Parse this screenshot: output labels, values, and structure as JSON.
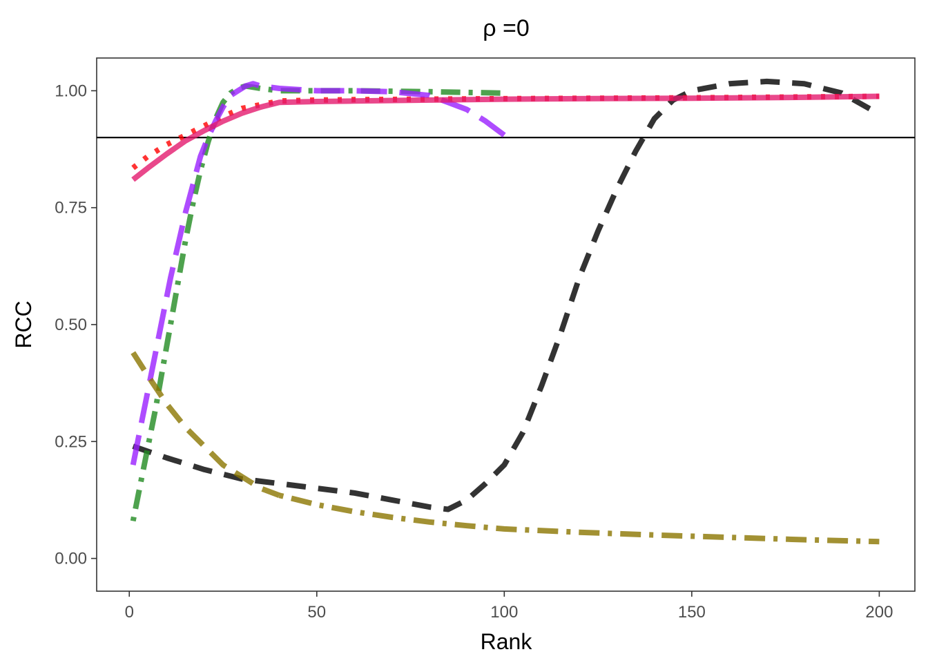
{
  "chart_data": {
    "type": "line",
    "title": "ρ =0",
    "xlabel": "Rank",
    "ylabel": "RCC",
    "xlim": [
      -8.7,
      209.5
    ],
    "ylim": [
      -0.07,
      1.07
    ],
    "xticks": [
      0,
      50,
      100,
      150,
      200
    ],
    "xtick_labels": [
      "0",
      "50",
      "100",
      "150",
      "200"
    ],
    "yticks": [
      0,
      0.25,
      0.5,
      0.75,
      1.0
    ],
    "ytick_labels": [
      "0.00",
      "0.25",
      "0.50",
      "0.75",
      "1.00"
    ],
    "grid": false,
    "legend": "none",
    "reference_line": {
      "y": 0.9,
      "color": "#000000"
    },
    "series": [
      {
        "color": "#000000",
        "opacity": 0.8,
        "dash": "dashed",
        "x": [
          1,
          10,
          20,
          30,
          40,
          50,
          60,
          70,
          80,
          85,
          90,
          95,
          100,
          105,
          110,
          115,
          120,
          125,
          130,
          135,
          140,
          145,
          150,
          160,
          170,
          180,
          190,
          200
        ],
        "y": [
          0.24,
          0.215,
          0.19,
          0.17,
          0.16,
          0.15,
          0.14,
          0.125,
          0.11,
          0.105,
          0.125,
          0.16,
          0.2,
          0.27,
          0.37,
          0.48,
          0.6,
          0.7,
          0.79,
          0.87,
          0.94,
          0.98,
          1.0,
          1.015,
          1.02,
          1.015,
          0.995,
          0.95
        ]
      },
      {
        "color": "#ff0000",
        "opacity": 0.8,
        "dash": "dotted",
        "x": [
          1,
          5,
          10,
          15,
          20,
          25,
          30,
          40,
          50,
          60,
          80,
          100,
          150,
          200
        ],
        "y": [
          0.835,
          0.86,
          0.885,
          0.905,
          0.925,
          0.945,
          0.962,
          0.978,
          0.98,
          0.981,
          0.982,
          0.983,
          0.985,
          0.988
        ]
      },
      {
        "color": "#228b22",
        "opacity": 0.8,
        "dash": "dotdash",
        "x": [
          1,
          3,
          5,
          7,
          9,
          11,
          13,
          15,
          17,
          19,
          21,
          23,
          25,
          27,
          29,
          31,
          35,
          40,
          50,
          60,
          80,
          100
        ],
        "y": [
          0.08,
          0.16,
          0.24,
          0.32,
          0.41,
          0.5,
          0.59,
          0.68,
          0.76,
          0.83,
          0.89,
          0.94,
          0.975,
          0.995,
          1.005,
          1.01,
          1.005,
          1.0,
          1.0,
          1.0,
          0.998,
          0.995
        ]
      },
      {
        "color": "#9a1fff",
        "opacity": 0.8,
        "dash": "longdash",
        "x": [
          1,
          3,
          5,
          7,
          9,
          11,
          13,
          15,
          17,
          19,
          21,
          23,
          25,
          27,
          29,
          31,
          33,
          35,
          40,
          50,
          60,
          70,
          80,
          85,
          90,
          95,
          100
        ],
        "y": [
          0.2,
          0.28,
          0.36,
          0.44,
          0.52,
          0.6,
          0.67,
          0.74,
          0.8,
          0.86,
          0.9,
          0.935,
          0.965,
          0.99,
          1.0,
          1.01,
          1.015,
          1.01,
          1.005,
          1.0,
          1.0,
          0.998,
          0.99,
          0.975,
          0.96,
          0.935,
          0.905
        ]
      },
      {
        "color": "#e31a6e",
        "opacity": 0.8,
        "dash": "solid",
        "x": [
          1,
          5,
          10,
          15,
          20,
          25,
          30,
          35,
          40,
          50,
          60,
          80,
          100,
          120,
          150,
          180,
          200
        ],
        "y": [
          0.81,
          0.835,
          0.865,
          0.893,
          0.915,
          0.935,
          0.952,
          0.965,
          0.975,
          0.977,
          0.978,
          0.98,
          0.982,
          0.983,
          0.984,
          0.986,
          0.988
        ]
      },
      {
        "color": "#8b7500",
        "opacity": 0.8,
        "dash": "dashed-then-dotdash",
        "x": [
          1,
          5,
          10,
          15,
          20,
          25,
          30,
          35,
          40,
          50,
          60,
          70,
          80,
          90,
          100,
          120,
          140,
          160,
          180,
          200
        ],
        "y": [
          0.44,
          0.39,
          0.33,
          0.28,
          0.24,
          0.2,
          0.175,
          0.15,
          0.135,
          0.115,
          0.1,
          0.088,
          0.078,
          0.07,
          0.063,
          0.056,
          0.05,
          0.045,
          0.04,
          0.036
        ]
      }
    ]
  }
}
